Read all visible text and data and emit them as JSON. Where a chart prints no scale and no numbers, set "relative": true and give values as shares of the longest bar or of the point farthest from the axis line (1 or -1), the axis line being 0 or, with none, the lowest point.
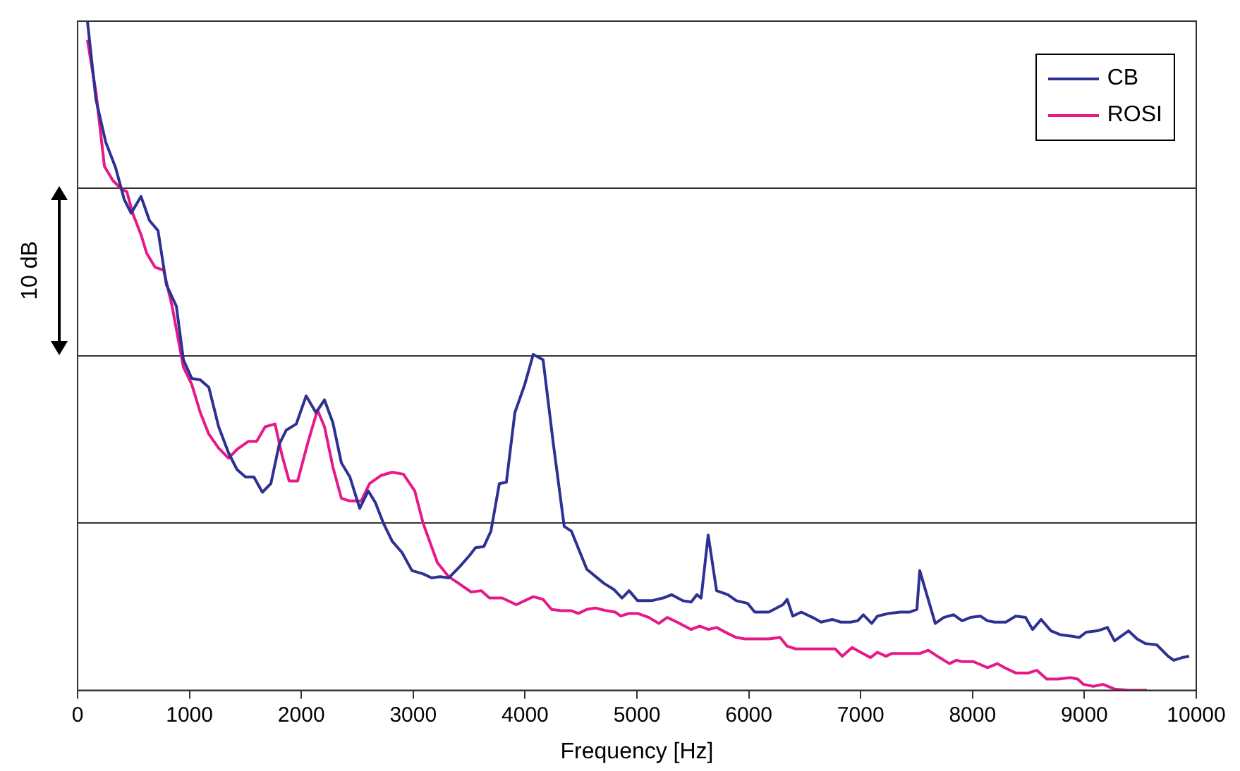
{
  "chart_data": {
    "type": "line",
    "relative": true,
    "xlabel": "Frequency [Hz]",
    "ylabel": "10 dB",
    "xlim": [
      0,
      10000
    ],
    "xticks": [
      0,
      1000,
      2000,
      3000,
      4000,
      5000,
      6000,
      7000,
      8000,
      9000,
      10000
    ],
    "grid": "y",
    "legend": "top right",
    "marker": "none",
    "line_style": "solid",
    "series": [
      {
        "name": "CB",
        "color": "#2e3192",
        "x": [
          88,
          164,
          252,
          340,
          416,
          479,
          567,
          643,
          719,
          794,
          883,
          946,
          1021,
          1097,
          1173,
          1261,
          1349,
          1425,
          1501,
          1576,
          1652,
          1728,
          1803,
          1866,
          1955,
          2043,
          2131,
          2207,
          2282,
          2358,
          2434,
          2522,
          2598,
          2661,
          2736,
          2812,
          2900,
          2989,
          3090,
          3165,
          3241,
          3317,
          3417,
          3506,
          3556,
          3632,
          3695,
          3770,
          3833,
          3909,
          3997,
          4073,
          4161,
          4250,
          4350,
          4414,
          4552,
          4704,
          4792,
          4867,
          4930,
          5006,
          5132,
          5233,
          5309,
          5410,
          5485,
          5536,
          5574,
          5637,
          5712,
          5813,
          5889,
          5990,
          6053,
          6179,
          6305,
          6343,
          6393,
          6469,
          6570,
          6646,
          6746,
          6822,
          6910,
          6973,
          7024,
          7099,
          7150,
          7251,
          7352,
          7440,
          7503,
          7528,
          7667,
          7743,
          7831,
          7907,
          7982,
          8070,
          8134,
          8197,
          8298,
          8386,
          8474,
          8537,
          8613,
          8701,
          8789,
          8890,
          8953,
          9016,
          9117,
          9206,
          9269,
          9395,
          9470,
          9546,
          9647,
          9748,
          9798,
          9874,
          9937
        ],
        "values": [
          1.0,
          0.883,
          0.819,
          0.781,
          0.734,
          0.713,
          0.738,
          0.702,
          0.687,
          0.606,
          0.574,
          0.494,
          0.466,
          0.464,
          0.453,
          0.394,
          0.355,
          0.33,
          0.319,
          0.319,
          0.296,
          0.309,
          0.368,
          0.389,
          0.398,
          0.44,
          0.415,
          0.434,
          0.4,
          0.34,
          0.319,
          0.272,
          0.298,
          0.281,
          0.249,
          0.223,
          0.206,
          0.179,
          0.174,
          0.168,
          0.17,
          0.168,
          0.185,
          0.202,
          0.213,
          0.215,
          0.238,
          0.309,
          0.311,
          0.415,
          0.457,
          0.502,
          0.494,
          0.372,
          0.245,
          0.238,
          0.181,
          0.16,
          0.151,
          0.138,
          0.149,
          0.134,
          0.134,
          0.138,
          0.143,
          0.134,
          0.132,
          0.143,
          0.138,
          0.232,
          0.149,
          0.143,
          0.134,
          0.13,
          0.117,
          0.117,
          0.128,
          0.136,
          0.111,
          0.117,
          0.109,
          0.102,
          0.106,
          0.102,
          0.102,
          0.104,
          0.113,
          0.1,
          0.111,
          0.115,
          0.117,
          0.117,
          0.121,
          0.179,
          0.1,
          0.109,
          0.113,
          0.104,
          0.109,
          0.111,
          0.104,
          0.102,
          0.102,
          0.111,
          0.109,
          0.091,
          0.106,
          0.089,
          0.083,
          0.081,
          0.079,
          0.087,
          0.089,
          0.094,
          0.074,
          0.089,
          0.077,
          0.07,
          0.068,
          0.051,
          0.045,
          0.049,
          0.051
        ]
      },
      {
        "name": "ROSI",
        "color": "#e6198a",
        "x": [
          88,
          164,
          240,
          315,
          391,
          441,
          492,
          567,
          618,
          694,
          769,
          845,
          946,
          1021,
          1097,
          1173,
          1261,
          1349,
          1425,
          1526,
          1601,
          1677,
          1765,
          1828,
          1891,
          1967,
          2055,
          2144,
          2207,
          2282,
          2358,
          2434,
          2535,
          2610,
          2711,
          2812,
          2913,
          3014,
          3090,
          3216,
          3317,
          3405,
          3518,
          3607,
          3682,
          3796,
          3922,
          3997,
          4073,
          4161,
          4237,
          4325,
          4414,
          4477,
          4552,
          4628,
          4729,
          4805,
          4855,
          4930,
          5006,
          5107,
          5195,
          5271,
          5359,
          5485,
          5561,
          5637,
          5712,
          5813,
          5889,
          5965,
          6091,
          6179,
          6280,
          6343,
          6419,
          6520,
          6620,
          6772,
          6835,
          6923,
          6999,
          7087,
          7150,
          7226,
          7276,
          7402,
          7528,
          7604,
          7705,
          7793,
          7856,
          7907,
          8008,
          8134,
          8222,
          8285,
          8386,
          8499,
          8575,
          8663,
          8764,
          8877,
          8940,
          8991,
          9080,
          9168,
          9269,
          9395,
          9559
        ],
        "values": [
          0.972,
          0.894,
          0.783,
          0.762,
          0.749,
          0.745,
          0.713,
          0.681,
          0.653,
          0.632,
          0.628,
          0.574,
          0.483,
          0.457,
          0.415,
          0.383,
          0.362,
          0.347,
          0.36,
          0.372,
          0.372,
          0.394,
          0.398,
          0.351,
          0.313,
          0.313,
          0.368,
          0.419,
          0.394,
          0.334,
          0.287,
          0.283,
          0.283,
          0.309,
          0.321,
          0.326,
          0.323,
          0.298,
          0.249,
          0.191,
          0.17,
          0.16,
          0.147,
          0.149,
          0.138,
          0.138,
          0.128,
          0.134,
          0.14,
          0.136,
          0.121,
          0.119,
          0.119,
          0.115,
          0.121,
          0.123,
          0.119,
          0.117,
          0.111,
          0.115,
          0.115,
          0.109,
          0.1,
          0.109,
          0.102,
          0.091,
          0.096,
          0.091,
          0.094,
          0.085,
          0.079,
          0.077,
          0.077,
          0.077,
          0.079,
          0.066,
          0.062,
          0.062,
          0.062,
          0.062,
          0.051,
          0.064,
          0.057,
          0.049,
          0.057,
          0.051,
          0.055,
          0.055,
          0.055,
          0.06,
          0.049,
          0.04,
          0.045,
          0.043,
          0.043,
          0.034,
          0.04,
          0.034,
          0.026,
          0.026,
          0.03,
          0.017,
          0.017,
          0.019,
          0.017,
          0.009,
          0.006,
          0.009,
          0.002,
          0,
          0
        ]
      }
    ]
  }
}
